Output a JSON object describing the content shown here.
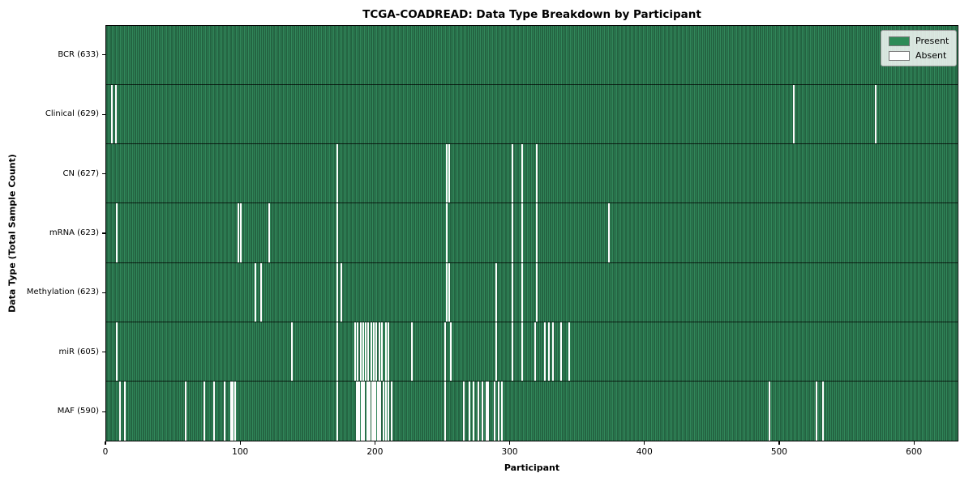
{
  "title": "TCGA-COADREAD: Data Type Breakdown by Participant",
  "xlabel": "Participant",
  "ylabel": "Data Type (Total Sample Count)",
  "legend": {
    "present_label": "Present",
    "absent_label": "Absent"
  },
  "colors": {
    "present": "#2e8b57",
    "present_edge": "#16402a",
    "absent": "#ffffff",
    "legend_border": "#9a9a9a"
  },
  "chart_data": {
    "type": "heatmap",
    "title": "TCGA-COADREAD: Data Type Breakdown by Participant",
    "xlabel": "Participant",
    "ylabel": "Data Type (Total Sample Count)",
    "legend_entries": [
      "Present",
      "Absent"
    ],
    "legend_position": "upper right",
    "x_axis": {
      "label": "Participant",
      "range": [
        0,
        633
      ],
      "ticks": [
        0,
        100,
        200,
        300,
        400,
        500,
        600
      ]
    },
    "n_participants": 633,
    "rows": [
      {
        "name": "BCR",
        "label": "BCR (633)",
        "total": 633,
        "absent_participants": []
      },
      {
        "name": "Clinical",
        "label": "Clinical (629)",
        "total": 629,
        "absent_participants": [
          4,
          7,
          511,
          572
        ]
      },
      {
        "name": "CN",
        "label": "CN (627)",
        "total": 627,
        "absent_participants": [
          172,
          253,
          255,
          302,
          309,
          320
        ]
      },
      {
        "name": "mRNA",
        "label": "mRNA (623)",
        "total": 623,
        "absent_participants": [
          8,
          98,
          100,
          121,
          172,
          253,
          302,
          309,
          320,
          374
        ]
      },
      {
        "name": "Methylation",
        "label": "Methylation (623)",
        "total": 623,
        "absent_participants": [
          111,
          115,
          172,
          175,
          253,
          255,
          290,
          302,
          309,
          320
        ]
      },
      {
        "name": "miR",
        "label": "miR (605)",
        "total": 605,
        "absent_participants": [
          8,
          138,
          172,
          185,
          187,
          189,
          191,
          193,
          195,
          197,
          199,
          201,
          203,
          205,
          208,
          210,
          227,
          252,
          256,
          290,
          302,
          309,
          319,
          326,
          329,
          332,
          338,
          344
        ]
      },
      {
        "name": "MAF",
        "label": "MAF (590)",
        "total": 590,
        "absent_participants": [
          10,
          14,
          59,
          73,
          80,
          88,
          93,
          94,
          96,
          172,
          186,
          187,
          188,
          190,
          191,
          192,
          194,
          195,
          196,
          198,
          199,
          200,
          202,
          203,
          204,
          206,
          208,
          210,
          212,
          252,
          266,
          270,
          273,
          277,
          280,
          283,
          284,
          289,
          292,
          294,
          493,
          528,
          533
        ]
      }
    ]
  }
}
